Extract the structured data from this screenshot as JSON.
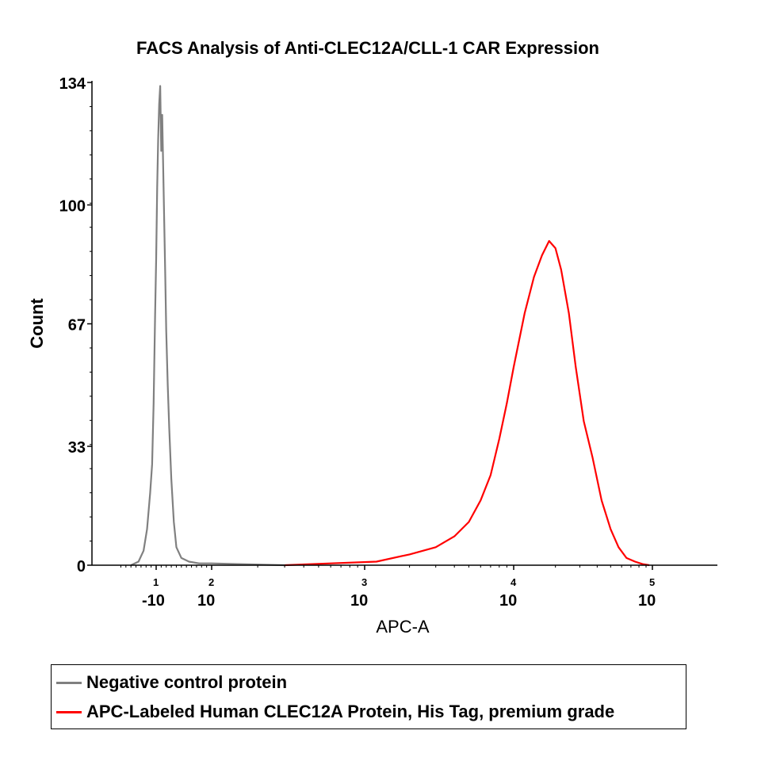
{
  "chart_data": {
    "type": "line",
    "title": "FACS Analysis of Anti-CLEC12A/CLL-1 CAR Expression",
    "xlabel": "APC-A",
    "ylabel": "Count",
    "x_scale": "biexponential",
    "ylim": [
      0,
      134
    ],
    "y_ticks": [
      {
        "value": 0,
        "label": "0"
      },
      {
        "value": 33,
        "label": "33"
      },
      {
        "value": 67,
        "label": "67"
      },
      {
        "value": 100,
        "label": "100"
      },
      {
        "value": 134,
        "label": "134"
      }
    ],
    "x_ticks": [
      {
        "value": -10,
        "base": "-10",
        "exp": "1"
      },
      {
        "value": 100,
        "base": "10",
        "exp": "2"
      },
      {
        "value": 1000,
        "base": "10",
        "exp": "3"
      },
      {
        "value": 10000,
        "base": "10",
        "exp": "4"
      },
      {
        "value": 100000,
        "base": "10",
        "exp": "5"
      }
    ],
    "legend_position": "bottom",
    "series": [
      {
        "name": "Negative control protein",
        "color": "#808080",
        "x": [
          -60,
          -45,
          -35,
          -28,
          -22,
          -18,
          -15,
          -12,
          -10,
          -8,
          -6,
          -4,
          -2,
          0,
          2,
          4,
          6,
          8,
          10,
          13,
          16,
          20,
          25,
          30,
          40,
          55,
          75,
          100,
          150,
          300
        ],
        "y": [
          0,
          1,
          4,
          10,
          20,
          28,
          45,
          70,
          85,
          105,
          118,
          128,
          133,
          115,
          125,
          110,
          95,
          80,
          65,
          50,
          38,
          24,
          12,
          5,
          2,
          1,
          0.5,
          0.5,
          0.3,
          0
        ]
      },
      {
        "name": "APC-Labeled Human CLEC12A Protein, His Tag, premium grade",
        "color": "#ff0000",
        "x": [
          300,
          600,
          1200,
          2000,
          3000,
          4000,
          5000,
          6000,
          7000,
          8000,
          9000,
          10000,
          12000,
          14000,
          16000,
          18000,
          20000,
          22000,
          25000,
          28000,
          32000,
          37000,
          43000,
          50000,
          57000,
          65000,
          75000,
          85000,
          95000
        ],
        "y": [
          0,
          0.5,
          1,
          3,
          5,
          8,
          12,
          18,
          25,
          35,
          45,
          55,
          70,
          80,
          86,
          90,
          88,
          82,
          70,
          55,
          40,
          30,
          18,
          10,
          5,
          2,
          1,
          0.3,
          0
        ]
      }
    ]
  }
}
